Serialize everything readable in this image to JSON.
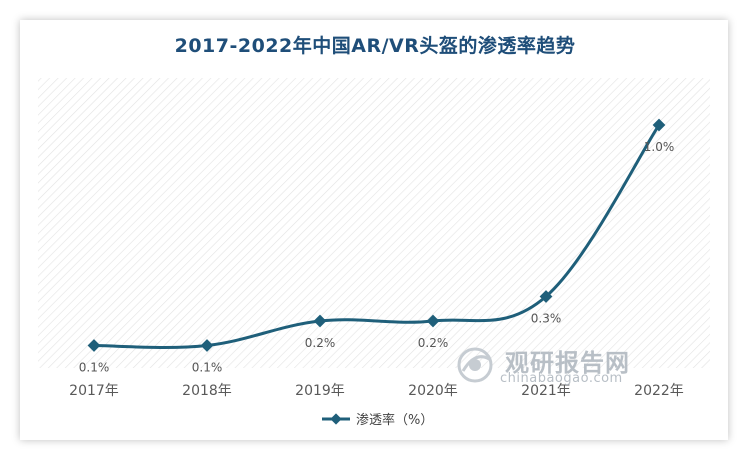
{
  "chart_data": {
    "type": "line",
    "title": "2017-2022年中国AR/VR头盔的渗透率趋势",
    "categories": [
      "2017年",
      "2018年",
      "2019年",
      "2020年",
      "2021年",
      "2022年"
    ],
    "series": [
      {
        "name": "渗透率（%）",
        "values": [
          0.1,
          0.1,
          0.2,
          0.2,
          0.3,
          1.0
        ],
        "labels": [
          "0.1%",
          "0.1%",
          "0.2%",
          "0.2%",
          "0.3%",
          "1.0%"
        ]
      }
    ],
    "ylim": [
      0,
      1.2
    ],
    "grid": false,
    "legend": "bottom",
    "colors": {
      "line": "#1f5f7a",
      "title": "#1f4e79",
      "text": "#555555"
    }
  },
  "watermark": {
    "cn": "观研报告网",
    "en": "chinabaogao.com"
  }
}
